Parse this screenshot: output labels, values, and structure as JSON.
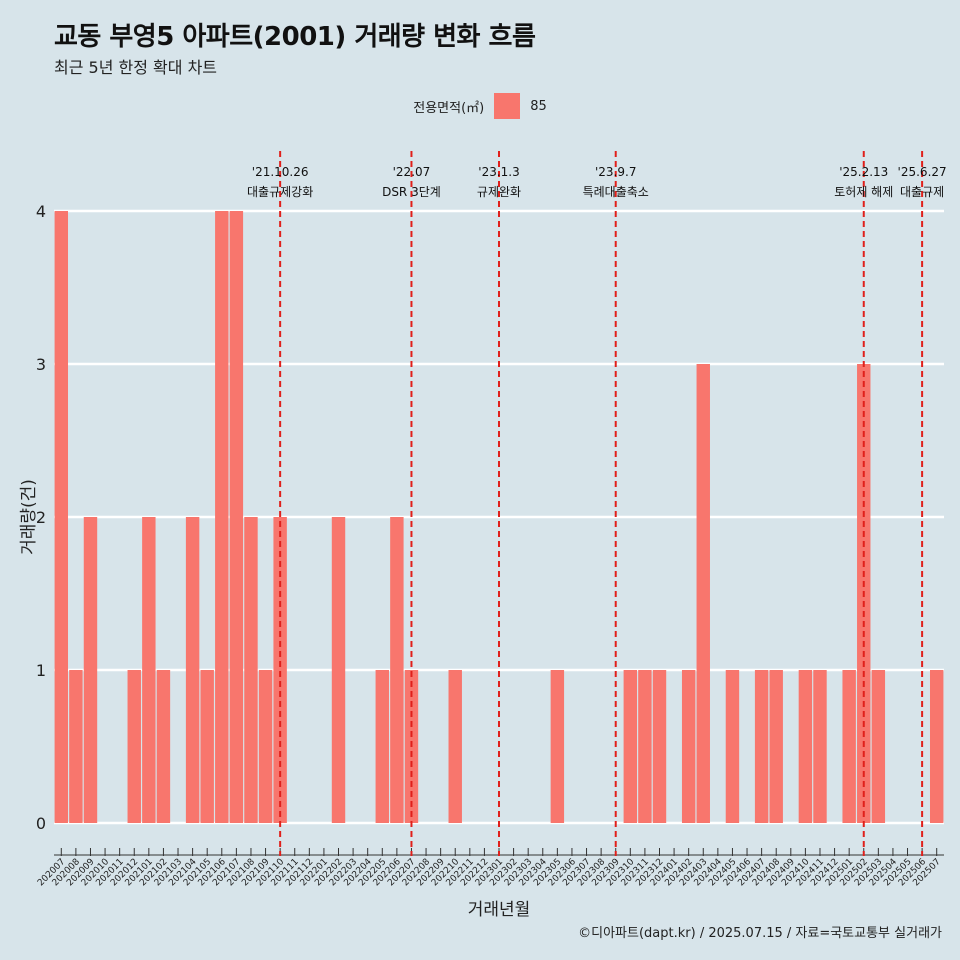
{
  "header": {
    "title": "교동 부영5 아파트(2001) 거래량 변화 흐름",
    "subtitle": "최근 5년 한정 확대 차트"
  },
  "legend": {
    "title": "전용면적(㎡)",
    "entry": "85",
    "color": "#f8766d"
  },
  "caption": "©디아파트(dapt.kr) / 2025.07.15 / 자료=국토교통부 실거래가",
  "chart_data": {
    "type": "bar",
    "xlabel": "거래년월",
    "ylabel": "거래량(건)",
    "ylim": [
      0,
      4
    ],
    "yticks": [
      0,
      1,
      2,
      3,
      4
    ],
    "grid": true,
    "legend_position": "top",
    "categories": [
      "202007",
      "202008",
      "202009",
      "202010",
      "202011",
      "202012",
      "202101",
      "202102",
      "202103",
      "202104",
      "202105",
      "202106",
      "202107",
      "202108",
      "202109",
      "202110",
      "202111",
      "202112",
      "202201",
      "202202",
      "202203",
      "202204",
      "202205",
      "202206",
      "202207",
      "202208",
      "202209",
      "202210",
      "202211",
      "202212",
      "202301",
      "202302",
      "202303",
      "202304",
      "202305",
      "202306",
      "202307",
      "202308",
      "202309",
      "202310",
      "202311",
      "202312",
      "202401",
      "202402",
      "202403",
      "202404",
      "202405",
      "202406",
      "202407",
      "202408",
      "202409",
      "202410",
      "202411",
      "202412",
      "202501",
      "202502",
      "202503",
      "202504",
      "202505",
      "202506",
      "202507"
    ],
    "series": [
      {
        "name": "85",
        "color": "#f8766d",
        "values": [
          4,
          1,
          2,
          0,
          0,
          1,
          2,
          1,
          0,
          2,
          1,
          4,
          4,
          2,
          1,
          2,
          0,
          0,
          0,
          2,
          0,
          0,
          1,
          2,
          1,
          0,
          0,
          1,
          0,
          0,
          0,
          0,
          0,
          0,
          1,
          0,
          0,
          0,
          0,
          1,
          1,
          1,
          0,
          1,
          3,
          0,
          1,
          0,
          1,
          1,
          0,
          1,
          1,
          0,
          1,
          3,
          1,
          0,
          0,
          0,
          1
        ]
      }
    ],
    "events": [
      {
        "date": "'21.10.26",
        "label": "대출규제강화",
        "x": "202110"
      },
      {
        "date": "'22.07",
        "label": "DSR 3단계",
        "x": "202207"
      },
      {
        "date": "'23.1.3",
        "label": "규제완화",
        "x": "202301"
      },
      {
        "date": "'23.9.7",
        "label": "특례대출축소",
        "x": "202309"
      },
      {
        "date": "'25.2.13",
        "label": "토허제 해제",
        "x": "202502"
      },
      {
        "date": "'25.6.27",
        "label": "대출규제",
        "x": "202506"
      }
    ]
  }
}
